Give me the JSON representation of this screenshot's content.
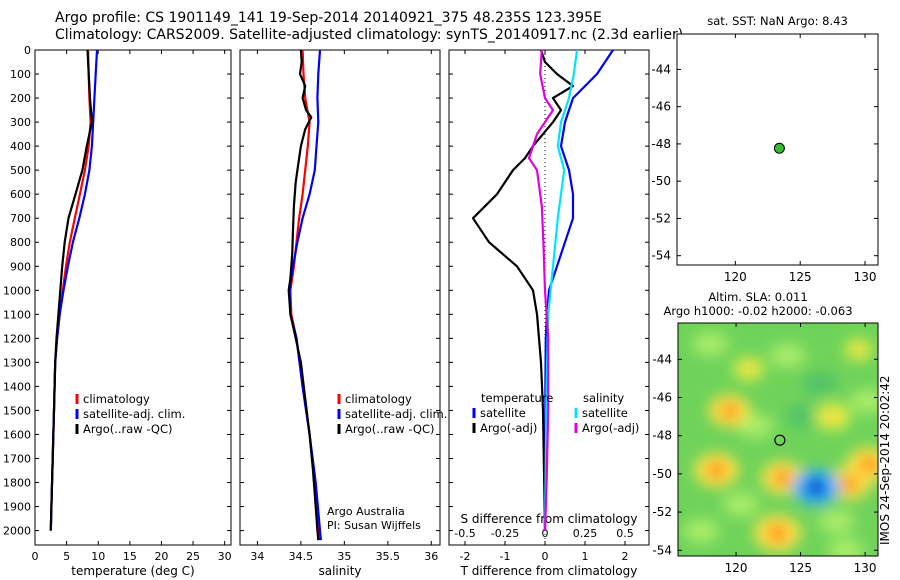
{
  "header": {
    "line1": "Argo profile: CS 1901149_141 19-Sep-2014 20140921_375 48.235S 123.395E",
    "line2": "Climatology: CARS2009. Satellite-adjusted climatology: synTS_20140917.nc (2.3d earlier)"
  },
  "colors": {
    "climatology": "#ff0000",
    "satellite": "#0000ff",
    "argo": "#000000",
    "salinity_satellite": "#00e5ff",
    "salinity_argo": "#e000e0",
    "float_marker": "#2fbf2f"
  },
  "chart_data": [
    {
      "type": "line",
      "name": "temperature-profile",
      "xlabel": "temperature (deg C)",
      "ylabel": "",
      "xlim": [
        0,
        31
      ],
      "ylim": [
        2060,
        0
      ],
      "xticks": [
        0,
        5,
        10,
        15,
        20,
        25,
        30
      ],
      "yticks": [
        0,
        100,
        200,
        300,
        400,
        500,
        600,
        700,
        800,
        900,
        1000,
        1100,
        1200,
        1300,
        1400,
        1500,
        1600,
        1700,
        1800,
        1900,
        2000
      ],
      "legend": [
        "climatology",
        "satellite-adj. clim.",
        "Argo(..raw -QC)"
      ],
      "series": [
        {
          "name": "climatology",
          "color": "#ff0000",
          "points": [
            [
              8.4,
              0
            ],
            [
              8.5,
              100
            ],
            [
              8.6,
              200
            ],
            [
              8.8,
              300
            ],
            [
              8.5,
              400
            ],
            [
              7.9,
              500
            ],
            [
              7.1,
              600
            ],
            [
              6.3,
              700
            ],
            [
              5.5,
              800
            ],
            [
              4.9,
              900
            ],
            [
              4.4,
              1000
            ],
            [
              3.9,
              1100
            ],
            [
              3.5,
              1200
            ],
            [
              3.2,
              1300
            ],
            [
              3.0,
              1500
            ],
            [
              2.8,
              1700
            ],
            [
              2.6,
              1900
            ],
            [
              2.5,
              2000
            ]
          ]
        },
        {
          "name": "satellite-adj. clim.",
          "color": "#0000ff",
          "points": [
            [
              9.8,
              0
            ],
            [
              9.6,
              100
            ],
            [
              9.4,
              200
            ],
            [
              9.2,
              300
            ],
            [
              9.0,
              400
            ],
            [
              8.6,
              500
            ],
            [
              7.9,
              600
            ],
            [
              7.0,
              700
            ],
            [
              6.0,
              800
            ],
            [
              5.2,
              900
            ],
            [
              4.5,
              1000
            ],
            [
              3.9,
              1100
            ],
            [
              3.5,
              1200
            ],
            [
              3.2,
              1300
            ],
            [
              3.0,
              1500
            ],
            [
              2.8,
              1700
            ],
            [
              2.6,
              1900
            ],
            [
              2.5,
              2000
            ]
          ]
        },
        {
          "name": "Argo(..raw -QC)",
          "color": "#000000",
          "points": [
            [
              8.3,
              0
            ],
            [
              8.5,
              100
            ],
            [
              8.7,
              200
            ],
            [
              9.0,
              300
            ],
            [
              8.2,
              400
            ],
            [
              7.5,
              500
            ],
            [
              6.4,
              600
            ],
            [
              5.3,
              700
            ],
            [
              4.7,
              800
            ],
            [
              4.3,
              900
            ],
            [
              4.0,
              1000
            ],
            [
              3.7,
              1100
            ],
            [
              3.4,
              1200
            ],
            [
              3.2,
              1300
            ],
            [
              3.0,
              1500
            ],
            [
              2.8,
              1700
            ],
            [
              2.6,
              1900
            ],
            [
              2.5,
              2000
            ]
          ]
        }
      ]
    },
    {
      "type": "line",
      "name": "salinity-profile",
      "xlabel": "salinity",
      "ylabel": "",
      "xlim": [
        33.8,
        36.1
      ],
      "ylim": [
        2060,
        0
      ],
      "xticks": [
        34,
        34.5,
        35,
        35.5,
        36
      ],
      "legend": [
        "climatology",
        "satellite-adj. clim.",
        "Argo(..raw -QC)"
      ],
      "series": [
        {
          "name": "climatology",
          "color": "#ff0000",
          "points": [
            [
              34.52,
              0
            ],
            [
              34.53,
              100
            ],
            [
              34.55,
              200
            ],
            [
              34.6,
              300
            ],
            [
              34.58,
              400
            ],
            [
              34.55,
              500
            ],
            [
              34.52,
              600
            ],
            [
              34.48,
              700
            ],
            [
              34.45,
              800
            ],
            [
              34.42,
              900
            ],
            [
              34.38,
              1000
            ],
            [
              34.39,
              1100
            ],
            [
              34.45,
              1200
            ],
            [
              34.52,
              1400
            ],
            [
              34.6,
              1600
            ],
            [
              34.66,
              1800
            ],
            [
              34.7,
              2000
            ],
            [
              34.71,
              2040
            ]
          ]
        },
        {
          "name": "satellite-adj. clim.",
          "color": "#0000ff",
          "points": [
            [
              34.72,
              0
            ],
            [
              34.7,
              100
            ],
            [
              34.69,
              200
            ],
            [
              34.7,
              300
            ],
            [
              34.68,
              400
            ],
            [
              34.66,
              500
            ],
            [
              34.6,
              600
            ],
            [
              34.52,
              700
            ],
            [
              34.46,
              800
            ],
            [
              34.41,
              900
            ],
            [
              34.37,
              1000
            ],
            [
              34.38,
              1100
            ],
            [
              34.45,
              1200
            ],
            [
              34.52,
              1400
            ],
            [
              34.6,
              1600
            ],
            [
              34.67,
              1800
            ],
            [
              34.72,
              2000
            ],
            [
              34.73,
              2040
            ]
          ]
        },
        {
          "name": "Argo(..raw -QC)",
          "color": "#000000",
          "points": [
            [
              34.5,
              0
            ],
            [
              34.51,
              50
            ],
            [
              34.49,
              100
            ],
            [
              34.55,
              150
            ],
            [
              34.52,
              200
            ],
            [
              34.56,
              250
            ],
            [
              34.62,
              280
            ],
            [
              34.55,
              330
            ],
            [
              34.5,
              400
            ],
            [
              34.46,
              500
            ],
            [
              34.44,
              550
            ],
            [
              34.42,
              650
            ],
            [
              34.41,
              750
            ],
            [
              34.4,
              850
            ],
            [
              34.38,
              950
            ],
            [
              34.36,
              1000
            ],
            [
              34.38,
              1100
            ],
            [
              34.44,
              1200
            ],
            [
              34.5,
              1300
            ],
            [
              34.55,
              1450
            ],
            [
              34.6,
              1600
            ],
            [
              34.64,
              1750
            ],
            [
              34.67,
              1900
            ],
            [
              34.69,
              2000
            ],
            [
              34.7,
              2040
            ]
          ]
        }
      ]
    },
    {
      "type": "line",
      "name": "difference-profile",
      "xlabel": "T difference from climatology",
      "xlabel_top": "S difference from climatology",
      "xlim": [
        -2.4,
        2.6
      ],
      "ylim": [
        2060,
        0
      ],
      "xticks": [
        -2,
        -1,
        0,
        1,
        2
      ],
      "xtick_labels_top": [
        "-0.5",
        "-0.25",
        "0",
        "0.25",
        "0.5"
      ],
      "xtick_values_top": [
        -0.5,
        -0.25,
        0,
        0.25,
        0.5
      ],
      "legend_temperature": [
        "temperature",
        "satellite",
        "Argo(-adj)"
      ],
      "legend_salinity": [
        "salinity",
        "satellite",
        "Argo(-adj)"
      ],
      "series": [
        {
          "name": "temperature satellite",
          "color": "#0000ff",
          "points": [
            [
              1.7,
              0
            ],
            [
              1.3,
              100
            ],
            [
              0.7,
              200
            ],
            [
              0.5,
              300
            ],
            [
              0.4,
              400
            ],
            [
              0.6,
              500
            ],
            [
              0.7,
              600
            ],
            [
              0.7,
              700
            ],
            [
              0.5,
              800
            ],
            [
              0.3,
              900
            ],
            [
              0.1,
              1000
            ],
            [
              0.05,
              1100
            ],
            [
              0.02,
              1200
            ],
            [
              0.01,
              1400
            ],
            [
              0.0,
              2000
            ]
          ]
        },
        {
          "name": "temperature Argo(-adj)",
          "color": "#000000",
          "points": [
            [
              -0.1,
              0
            ],
            [
              0.0,
              50
            ],
            [
              0.3,
              100
            ],
            [
              0.7,
              150
            ],
            [
              0.2,
              200
            ],
            [
              0.4,
              250
            ],
            [
              0.2,
              300
            ],
            [
              -0.3,
              400
            ],
            [
              -0.5,
              450
            ],
            [
              -0.8,
              500
            ],
            [
              -1.2,
              600
            ],
            [
              -1.8,
              700
            ],
            [
              -1.4,
              800
            ],
            [
              -0.7,
              900
            ],
            [
              -0.3,
              1000
            ],
            [
              -0.2,
              1100
            ],
            [
              -0.1,
              1300
            ],
            [
              -0.05,
              1500
            ],
            [
              0.0,
              2000
            ]
          ]
        },
        {
          "name": "salinity satellite",
          "color": "#00e5ff",
          "points": [
            [
              0.2,
              0
            ],
            [
              0.18,
              100
            ],
            [
              0.15,
              200
            ],
            [
              0.1,
              300
            ],
            [
              0.08,
              400
            ],
            [
              0.12,
              500
            ],
            [
              0.1,
              600
            ],
            [
              0.08,
              700
            ],
            [
              0.05,
              900
            ],
            [
              0.02,
              1100
            ],
            [
              0.01,
              1400
            ],
            [
              0.0,
              2000
            ]
          ]
        },
        {
          "name": "salinity Argo(-adj)",
          "color": "#e000e0",
          "points": [
            [
              -0.02,
              0
            ],
            [
              -0.03,
              100
            ],
            [
              0.0,
              200
            ],
            [
              0.05,
              250
            ],
            [
              -0.05,
              350
            ],
            [
              -0.1,
              450
            ],
            [
              -0.05,
              500
            ],
            [
              -0.02,
              650
            ],
            [
              -0.01,
              800
            ],
            [
              0.0,
              1000
            ],
            [
              0.02,
              1200
            ],
            [
              0.02,
              1500
            ],
            [
              0.01,
              1800
            ],
            [
              0.0,
              2000
            ]
          ]
        }
      ]
    },
    {
      "type": "scatter",
      "name": "sst-map",
      "title": "sat. SST: NaN  Argo: 8.43",
      "xlim": [
        115.5,
        131
      ],
      "ylim": [
        -54.5,
        -42.1
      ],
      "xticks": [
        120,
        125,
        130
      ],
      "yticks": [
        -44,
        -46,
        -48,
        -50,
        -52,
        -54
      ],
      "points": [
        [
          123.395,
          -48.235
        ]
      ]
    },
    {
      "type": "heatmap",
      "name": "sla-map",
      "title_line1": "Altim. SLA: 0.011",
      "title_line2": "Argo h1000: -0.02  h2000: -0.063",
      "xlim": [
        115.5,
        131
      ],
      "ylim": [
        -54.3,
        -42.1
      ],
      "xticks": [
        120,
        125,
        130
      ],
      "yticks": [
        -44,
        -46,
        -48,
        -50,
        -52,
        -54
      ],
      "points": [
        [
          123.395,
          -48.235
        ]
      ],
      "blobs": [
        {
          "x": 119.5,
          "y": -46.7,
          "v": 0.8
        },
        {
          "x": 118.5,
          "y": -49.8,
          "v": 0.9
        },
        {
          "x": 123.6,
          "y": -50.2,
          "v": 0.85
        },
        {
          "x": 123.2,
          "y": -53.1,
          "v": 1.0
        },
        {
          "x": 127.5,
          "y": -47.0,
          "v": 0.6
        },
        {
          "x": 128.8,
          "y": -50.5,
          "v": 0.8
        },
        {
          "x": 130.3,
          "y": -49.5,
          "v": 0.9
        },
        {
          "x": 126.2,
          "y": -50.7,
          "v": -1.0
        },
        {
          "x": 121.0,
          "y": -44.5,
          "v": 0.4
        },
        {
          "x": 129.5,
          "y": -43.5,
          "v": 0.3
        }
      ]
    }
  ],
  "credits": {
    "argo_line1": "Argo Australia",
    "argo_line2": "PI: Susan Wijffels",
    "imos": "IMOS 24-Sep-2014 20:02:42"
  }
}
